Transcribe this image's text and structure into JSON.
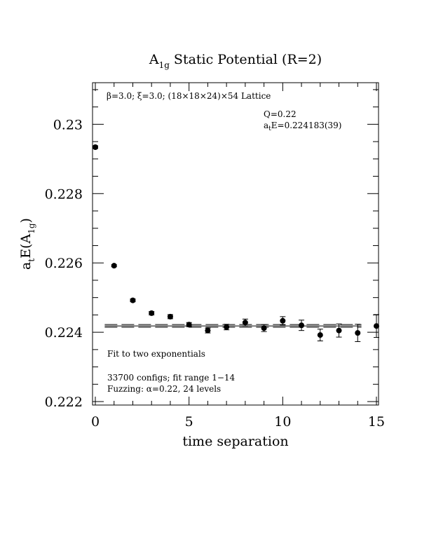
{
  "chart_data": {
    "type": "scatter",
    "title": {
      "main": "A",
      "sub": "1g",
      "rest": " Static Potential (R=2)"
    },
    "xlabel": "time separation",
    "ylabel": {
      "a": "a",
      "t": "t",
      "E": "E(A",
      "sub": "1g",
      "close": ")"
    },
    "xlim": [
      0,
      15
    ],
    "ylim": [
      0.2219,
      0.2312
    ],
    "xticks": [
      0,
      5,
      10,
      15
    ],
    "yticks": [
      0.222,
      0.224,
      0.226,
      0.228,
      0.23
    ],
    "ytick_labels": [
      "0.222",
      "0.224",
      "0.226",
      "0.228",
      "0.23"
    ],
    "grid": false,
    "series": [
      {
        "x": [
          0,
          1,
          2,
          3,
          4,
          5,
          6,
          7,
          8,
          9,
          10,
          11,
          12,
          13,
          14,
          15
        ],
        "y": [
          0.22934,
          0.22592,
          0.22492,
          0.22455,
          0.22445,
          0.22422,
          0.22405,
          0.22415,
          0.22428,
          0.22412,
          0.22433,
          0.2242,
          0.22392,
          0.22405,
          0.22398,
          0.22418
        ],
        "err": [
          4e-05,
          3e-05,
          4e-05,
          5e-05,
          6e-05,
          6e-05,
          7e-05,
          8e-05,
          0.0001,
          0.0001,
          0.00012,
          0.00015,
          0.00017,
          0.00019,
          0.00025,
          0.00033
        ]
      }
    ],
    "fit": {
      "x_range": [
        0.5,
        14.2
      ],
      "value": 0.224183,
      "error": 3.9e-05
    },
    "annotations": {
      "lattice": "β=3.0; ξ=3.0; (18×18×24)×54 Lattice",
      "q": "Q=0.22",
      "energy": {
        "a": "a",
        "t": "t",
        "rest": "E=0.224183(39)"
      },
      "fit_label": "Fit to two exponentials",
      "configs": "33700 configs; fit range 1−14",
      "fuzzing": "Fuzzing: α=0.22, 24 levels"
    }
  }
}
